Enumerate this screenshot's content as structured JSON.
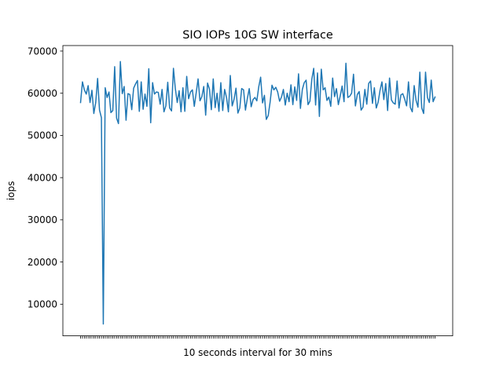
{
  "chart_data": {
    "type": "line",
    "title": "SIO IOPs 10G SW interface",
    "xlabel": "10 seconds interval for 30 mins",
    "ylabel": "iops",
    "ylim": [
      2500,
      71300
    ],
    "yticks": [
      10000,
      20000,
      30000,
      40000,
      50000,
      60000,
      70000
    ],
    "ytick_labels": [
      "10000",
      "20000",
      "30000",
      "40000",
      "50000",
      "60000",
      "70000"
    ],
    "x_tick_labels_visible": false,
    "grid": false,
    "line_color": "#1f77b4",
    "series": [
      {
        "values": [
          57800,
          62700,
          60800,
          59800,
          61800,
          57800,
          60700,
          55200,
          57800,
          63500,
          56000,
          54200,
          5300,
          61300,
          59000,
          60300,
          55400,
          55900,
          66300,
          54100,
          52800,
          67500,
          59900,
          61600,
          53600,
          59900,
          59700,
          56100,
          61200,
          62200,
          63000,
          55700,
          62700,
          56200,
          59800,
          56900,
          65800,
          53000,
          62500,
          59800,
          60300,
          60200,
          57400,
          60900,
          55600,
          57000,
          62600,
          56500,
          55800,
          65900,
          61100,
          57800,
          60600,
          55600,
          61300,
          55700,
          64000,
          58700,
          60300,
          60800,
          56900,
          60100,
          63400,
          58200,
          59200,
          61600,
          54800,
          62400,
          61000,
          56100,
          63400,
          56600,
          60000,
          55700,
          62500,
          55900,
          60900,
          59000,
          55600,
          64200,
          57000,
          58600,
          61200,
          55300,
          56500,
          61100,
          60800,
          56000,
          58800,
          61100,
          56800,
          58500,
          59000,
          58200,
          61500,
          63800,
          57700,
          59500,
          53800,
          54700,
          57900,
          61900,
          60800,
          61400,
          60300,
          58100,
          59100,
          60900,
          57200,
          60000,
          58000,
          62000,
          57300,
          61500,
          58300,
          64600,
          56400,
          60900,
          62500,
          63100,
          57300,
          58100,
          63300,
          65900,
          57200,
          64800,
          54500,
          65700,
          60800,
          61300,
          58300,
          59100,
          56900,
          63600,
          59200,
          61100,
          57300,
          59400,
          61700,
          58000,
          67100,
          59000,
          59300,
          60000,
          64500,
          57000,
          59700,
          60400,
          56000,
          56700,
          60900,
          57400,
          62300,
          62900,
          57600,
          61300,
          56500,
          57900,
          60700,
          62700,
          58500,
          62300,
          55900,
          63600,
          58400,
          57700,
          57400,
          62900,
          56500,
          59600,
          59900,
          58600,
          57000,
          62700,
          56600,
          55600,
          61800,
          58300,
          56700,
          65000,
          56500,
          55200,
          65000,
          59000,
          57800,
          63100,
          58000,
          59100
        ]
      }
    ]
  }
}
